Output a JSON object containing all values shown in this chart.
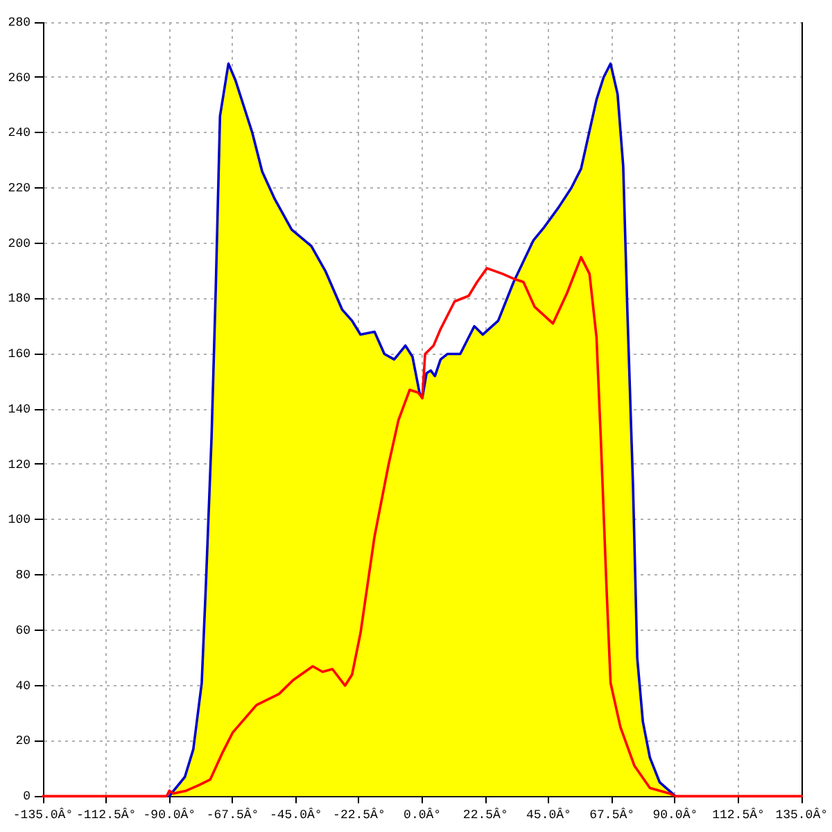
{
  "chart_data": {
    "type": "line",
    "series": [
      {
        "color": "#ff0000",
        "x": [
          -135,
          -91,
          -90,
          -88.5,
          -84,
          -79.5,
          -75.5,
          -71,
          -67.5,
          -59,
          -51,
          -46,
          -39,
          -35.5,
          -32,
          -27.5,
          -25,
          -22,
          -17,
          -12,
          -8.5,
          -4.5,
          -1.5,
          0,
          1,
          4,
          6.5,
          11.5,
          16.5,
          19.5,
          23,
          28.5,
          33,
          36,
          40,
          46.5,
          51.5,
          56.5,
          59.5,
          62,
          63.5,
          65.5,
          67,
          70.5,
          75.5,
          81,
          88,
          90,
          135
        ],
        "values": [
          0,
          0,
          2,
          1,
          2,
          4,
          6,
          16,
          23,
          33,
          37,
          42,
          47,
          45,
          46,
          40,
          44,
          59,
          94,
          120,
          136,
          147,
          146,
          144,
          160,
          163,
          169,
          179,
          181,
          186,
          191,
          189,
          187,
          186,
          177,
          171,
          182,
          195,
          189,
          166,
          130,
          77,
          41,
          25,
          11,
          3,
          1,
          0,
          0
        ]
      },
      {
        "type": "area",
        "color": "#ffff00",
        "x": [
          -90,
          -88.5,
          -84.5,
          -81.5,
          -78.5,
          -77,
          -75,
          -73.5,
          -72,
          -69,
          -66.5,
          -60.5,
          -57,
          -52.5,
          -46.5,
          -39.5,
          -34.5,
          -28.5,
          -25,
          -22,
          -17,
          -13.5,
          -10,
          -6,
          -3.5,
          -1,
          0,
          1.5,
          3,
          4.5,
          6.5,
          9,
          13.5,
          16,
          18.5,
          21.5,
          27,
          32.5,
          39.5,
          43.5,
          48.5,
          53,
          56.5,
          62,
          64.5,
          67,
          69.5,
          71.5,
          73,
          75,
          76.5,
          78.5,
          81,
          84.5,
          89,
          90
        ],
        "values": [
          0,
          2,
          7,
          17,
          41,
          77,
          130,
          184,
          246,
          265,
          259,
          240,
          226,
          216,
          205,
          199,
          190,
          176,
          172,
          167,
          168,
          160,
          158,
          163,
          159,
          146,
          144,
          153,
          154,
          152,
          158,
          160,
          160,
          165,
          170,
          167,
          172,
          186,
          201,
          206,
          213,
          220,
          227,
          252,
          260,
          265,
          254,
          228,
          175,
          112,
          50,
          27,
          14,
          5,
          1,
          0
        ]
      }
    ],
    "xlim": [
      -135,
      135
    ],
    "xticks": [
      {
        "value": -135,
        "label": "-135.0Â°"
      },
      {
        "value": -112.5,
        "label": "-112.5Â°"
      },
      {
        "value": -90,
        "label": "-90.0Â°"
      },
      {
        "value": -67.5,
        "label": "-67.5Â°"
      },
      {
        "value": -45,
        "label": "-45.0Â°"
      },
      {
        "value": -22.5,
        "label": "-22.5Â°"
      },
      {
        "value": 0,
        "label": "0.0Â°"
      },
      {
        "value": 22.5,
        "label": "22.5Â°"
      },
      {
        "value": 45,
        "label": "45.0Â°"
      },
      {
        "value": 67.5,
        "label": "67.5Â°"
      },
      {
        "value": 90,
        "label": "90.0Â°"
      },
      {
        "value": 112.5,
        "label": "112.5Â°"
      },
      {
        "value": 135,
        "label": "135.0Â°"
      }
    ],
    "ylim": [
      0,
      280
    ],
    "yticks": [
      0,
      20,
      40,
      60,
      80,
      100,
      120,
      140,
      160,
      180,
      200,
      220,
      240,
      260,
      280
    ],
    "grid": true,
    "marker": "none"
  }
}
